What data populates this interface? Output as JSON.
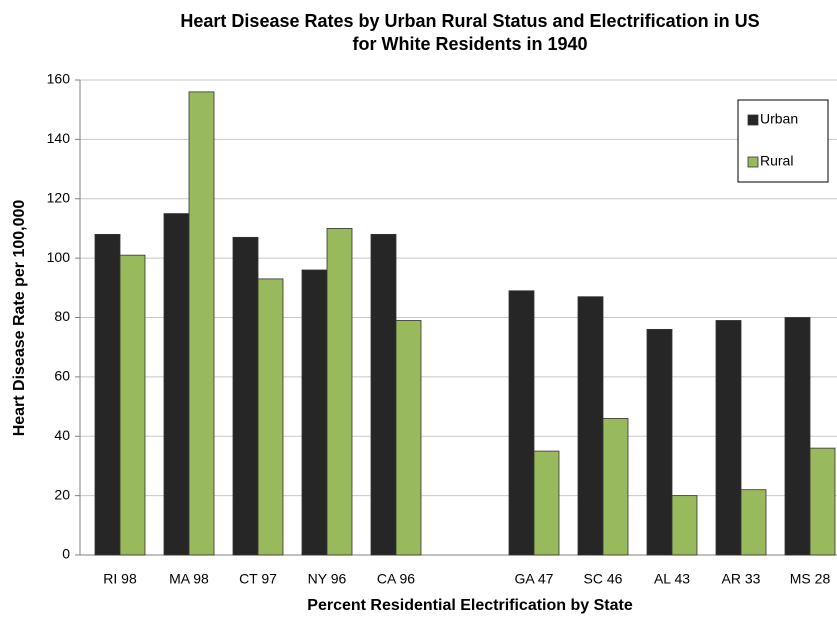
{
  "chart_data": {
    "type": "bar",
    "title": [
      "Heart Disease Rates by Urban Rural Status and Electrification in US",
      "for White Residents in 1940"
    ],
    "x_label": "Percent Residential Electrification by State",
    "y_label": "Heart Disease Rate per 100,000",
    "categories": [
      "RI 98",
      "MA 98",
      "CT 97",
      "NY 96",
      "CA 96",
      null,
      "GA 47",
      "SC 46",
      "AL 43",
      "AR 33",
      "MS 28"
    ],
    "series": [
      {
        "name": "Urban",
        "color": "#262626",
        "values": [
          108,
          115,
          107,
          96,
          108,
          null,
          89,
          87,
          76,
          79,
          80
        ]
      },
      {
        "name": "Rural",
        "color": "#98b95c",
        "values": [
          101,
          156,
          93,
          110,
          79,
          null,
          35,
          46,
          20,
          22,
          36
        ]
      }
    ],
    "ylim": [
      0,
      160
    ],
    "yticks": [
      0,
      20,
      40,
      60,
      80,
      100,
      120,
      140,
      160
    ],
    "grid": true,
    "legend": "upper right"
  }
}
